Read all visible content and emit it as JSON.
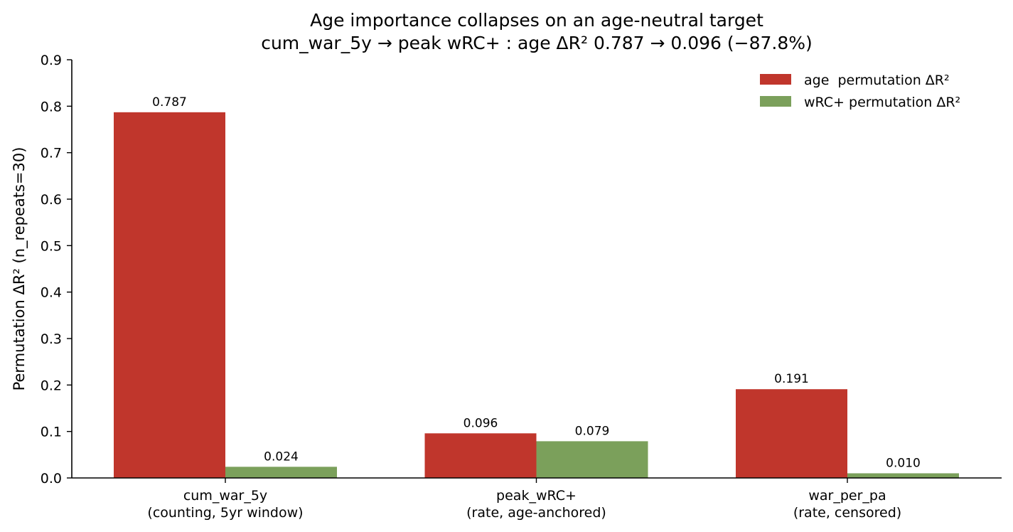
{
  "chart_data": {
    "type": "bar",
    "title": "Age importance collapses on an age-neutral target",
    "subtitle": "cum_war_5y → peak wRC+ : age ΔR² 0.787 → 0.096 (−87.8%)",
    "xlabel": "",
    "ylabel": "Permutation ΔR² (n_repeats=30)",
    "categories": [
      [
        "cum_war_5y",
        "(counting, 5yr window)"
      ],
      [
        "peak_wRC+",
        "(rate, age-anchored)"
      ],
      [
        "war_per_pa",
        "(rate, censored)"
      ]
    ],
    "series": [
      {
        "name": "age  permutation ΔR²",
        "color": "#c0362c",
        "values": [
          0.787,
          0.096,
          0.191
        ],
        "labels": [
          "0.787",
          "0.096",
          "0.191"
        ]
      },
      {
        "name": "wRC+ permutation ΔR²",
        "color": "#7ba05b",
        "values": [
          0.024,
          0.079,
          0.01
        ],
        "labels": [
          "0.024",
          "0.079",
          "0.010"
        ]
      }
    ],
    "ylim": [
      0,
      0.9
    ],
    "yticks": [
      "0.0",
      "0.1",
      "0.2",
      "0.3",
      "0.4",
      "0.5",
      "0.6",
      "0.7",
      "0.8",
      "0.9"
    ],
    "grid": false,
    "legend_position": "top-right"
  }
}
